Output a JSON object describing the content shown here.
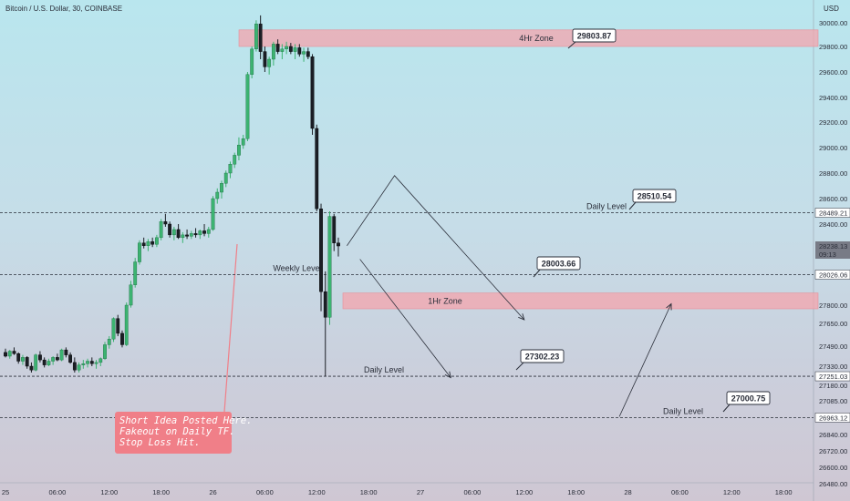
{
  "header": {
    "symbol_title": "Bitcoin / U.S. Dollar, 30, COINBASE",
    "currency": "USD"
  },
  "colors": {
    "up": "#3cb371",
    "down": "#1b1e25",
    "zone_fill": "#f4a4ac",
    "note_fill": "#f07f88"
  },
  "note": {
    "text": "Short Idea Posted Here.\nFakeout on Daily TF.\nStop Loss Hit."
  },
  "chart_data": {
    "type": "candlestick",
    "y_axis": {
      "ticks": [
        30000,
        29800,
        29600,
        29400,
        29200,
        29000,
        28800,
        28600,
        28400,
        27800,
        27650,
        27490,
        27330,
        27180,
        27085,
        26840,
        26720,
        26600,
        26480
      ],
      "tick_labels": [
        "30000.00",
        "29800.00",
        "29600.00",
        "29400.00",
        "29200.00",
        "29000.00",
        "28800.00",
        "28600.00",
        "28400.00",
        "27800.00",
        "27650.00",
        "27490.00",
        "27330.00",
        "27180.00",
        "27085.00",
        "26840.00",
        "26720.00",
        "26600.00",
        "26480.00"
      ],
      "price_tags": [
        {
          "value": 28489.21,
          "label": "28489.21",
          "style": "light"
        },
        {
          "value": 28238.13,
          "label": "28238.13",
          "style": "grey",
          "sub": "09:13"
        },
        {
          "value": 28026.06,
          "label": "28026.06",
          "style": "light"
        },
        {
          "value": 27251.03,
          "label": "27251.03",
          "style": "light"
        },
        {
          "value": 26963.12,
          "label": "26963.12",
          "style": "light"
        }
      ]
    },
    "x_axis": {
      "ticks": [
        {
          "label": "25",
          "bar": 0
        },
        {
          "label": "06:00",
          "bar": 12
        },
        {
          "label": "12:00",
          "bar": 24
        },
        {
          "label": "18:00",
          "bar": 36
        },
        {
          "label": "26",
          "bar": 48
        },
        {
          "label": "06:00",
          "bar": 60
        },
        {
          "label": "12:00",
          "bar": 72
        },
        {
          "label": "18:00",
          "bar": 84
        },
        {
          "label": "27",
          "bar": 96
        },
        {
          "label": "06:00",
          "bar": 108
        },
        {
          "label": "12:00",
          "bar": 120
        },
        {
          "label": "18:00",
          "bar": 132
        },
        {
          "label": "28",
          "bar": 144
        },
        {
          "label": "06:00",
          "bar": 156
        },
        {
          "label": "12:00",
          "bar": 168
        },
        {
          "label": "18:00",
          "bar": 180
        }
      ]
    },
    "candles": [
      [
        27440,
        27470,
        27400,
        27410
      ],
      [
        27410,
        27460,
        27390,
        27450
      ],
      [
        27450,
        27480,
        27420,
        27430
      ],
      [
        27430,
        27440,
        27350,
        27370
      ],
      [
        27370,
        27420,
        27340,
        27400
      ],
      [
        27400,
        27410,
        27310,
        27330
      ],
      [
        27330,
        27360,
        27280,
        27300
      ],
      [
        27300,
        27430,
        27290,
        27420
      ],
      [
        27420,
        27450,
        27360,
        27380
      ],
      [
        27380,
        27400,
        27320,
        27340
      ],
      [
        27340,
        27390,
        27330,
        27370
      ],
      [
        27370,
        27410,
        27340,
        27400
      ],
      [
        27400,
        27430,
        27370,
        27380
      ],
      [
        27380,
        27470,
        27370,
        27460
      ],
      [
        27460,
        27480,
        27400,
        27420
      ],
      [
        27420,
        27440,
        27350,
        27360
      ],
      [
        27360,
        27400,
        27280,
        27300
      ],
      [
        27300,
        27360,
        27280,
        27340
      ],
      [
        27340,
        27380,
        27310,
        27350
      ],
      [
        27350,
        27390,
        27320,
        27370
      ],
      [
        27370,
        27400,
        27330,
        27350
      ],
      [
        27350,
        27380,
        27310,
        27360
      ],
      [
        27360,
        27400,
        27330,
        27390
      ],
      [
        27390,
        27520,
        27380,
        27500
      ],
      [
        27500,
        27560,
        27470,
        27540
      ],
      [
        27540,
        27700,
        27520,
        27690
      ],
      [
        27690,
        27720,
        27560,
        27580
      ],
      [
        27580,
        27600,
        27480,
        27500
      ],
      [
        27500,
        27820,
        27490,
        27800
      ],
      [
        27800,
        27980,
        27780,
        27950
      ],
      [
        27950,
        28150,
        27930,
        28120
      ],
      [
        28120,
        28280,
        28100,
        28260
      ],
      [
        28260,
        28300,
        28220,
        28240
      ],
      [
        28240,
        28290,
        28200,
        28270
      ],
      [
        28270,
        28300,
        28230,
        28250
      ],
      [
        28250,
        28320,
        28230,
        28300
      ],
      [
        28300,
        28440,
        28280,
        28420
      ],
      [
        28420,
        28480,
        28380,
        28400
      ],
      [
        28400,
        28420,
        28300,
        28320
      ],
      [
        28320,
        28380,
        28280,
        28360
      ],
      [
        28360,
        28400,
        28290,
        28300
      ],
      [
        28300,
        28340,
        28260,
        28320
      ],
      [
        28320,
        28360,
        28290,
        28310
      ],
      [
        28310,
        28350,
        28290,
        28330
      ],
      [
        28330,
        28370,
        28300,
        28320
      ],
      [
        28320,
        28360,
        28290,
        28350
      ],
      [
        28350,
        28400,
        28310,
        28330
      ],
      [
        28330,
        28380,
        28300,
        28360
      ],
      [
        28360,
        28620,
        28350,
        28600
      ],
      [
        28600,
        28680,
        28560,
        28650
      ],
      [
        28650,
        28740,
        28600,
        28720
      ],
      [
        28720,
        28820,
        28690,
        28800
      ],
      [
        28800,
        28890,
        28760,
        28870
      ],
      [
        28870,
        28960,
        28840,
        28940
      ],
      [
        28940,
        29080,
        28900,
        29020
      ],
      [
        29020,
        29100,
        28990,
        29070
      ],
      [
        29070,
        29600,
        29050,
        29580
      ],
      [
        29580,
        29800,
        29550,
        29780
      ],
      [
        29780,
        30020,
        29760,
        29990
      ],
      [
        29990,
        30060,
        29700,
        29760
      ],
      [
        29760,
        29800,
        29600,
        29640
      ],
      [
        29640,
        29720,
        29580,
        29700
      ],
      [
        29700,
        29840,
        29650,
        29820
      ],
      [
        29820,
        29860,
        29740,
        29760
      ],
      [
        29760,
        29820,
        29700,
        29780
      ],
      [
        29780,
        29840,
        29740,
        29800
      ],
      [
        29800,
        29830,
        29740,
        29760
      ],
      [
        29760,
        29820,
        29700,
        29790
      ],
      [
        29790,
        29820,
        29720,
        29740
      ],
      [
        29740,
        29790,
        29680,
        29760
      ],
      [
        29760,
        29790,
        29700,
        29720
      ],
      [
        29720,
        29740,
        29100,
        29150
      ],
      [
        29150,
        29180,
        28500,
        28520
      ],
      [
        28520,
        28560,
        27750,
        27900
      ],
      [
        27900,
        28050,
        27250,
        27700
      ],
      [
        27700,
        28500,
        27640,
        28460
      ],
      [
        28460,
        28480,
        28200,
        28260
      ],
      [
        28260,
        28300,
        28160,
        28238
      ]
    ],
    "zones": [
      {
        "label": "4Hr Zone",
        "from": 29800,
        "to": 29940
      },
      {
        "label": "1Hr Zone",
        "from": 27770,
        "to": 27890
      }
    ],
    "levels": [
      {
        "label": "Daily Level",
        "value": 28489.21
      },
      {
        "label": "Weekly Level",
        "value": 28026.06
      },
      {
        "label": "Daily Level",
        "value": 27251.03
      },
      {
        "label": "Daily Level",
        "value": 26963.12
      }
    ],
    "callouts": [
      {
        "value_label": "29803.87",
        "price": 29803.87
      },
      {
        "value_label": "28510.54",
        "price": 28510.54
      },
      {
        "value_label": "28003.66",
        "price": 28003.66
      },
      {
        "value_label": "27302.23",
        "price": 27302.23
      },
      {
        "value_label": "27000.75",
        "price": 27000.75
      }
    ],
    "projection_paths": [
      {
        "points": [
          [
            79,
            28240
          ],
          [
            90,
            28780
          ],
          [
            120,
            27680
          ]
        ]
      },
      {
        "points": [
          [
            82,
            28140
          ],
          [
            103,
            27240
          ]
        ]
      },
      {
        "points": [
          [
            142,
            26970
          ],
          [
            154,
            27810
          ]
        ]
      }
    ]
  }
}
